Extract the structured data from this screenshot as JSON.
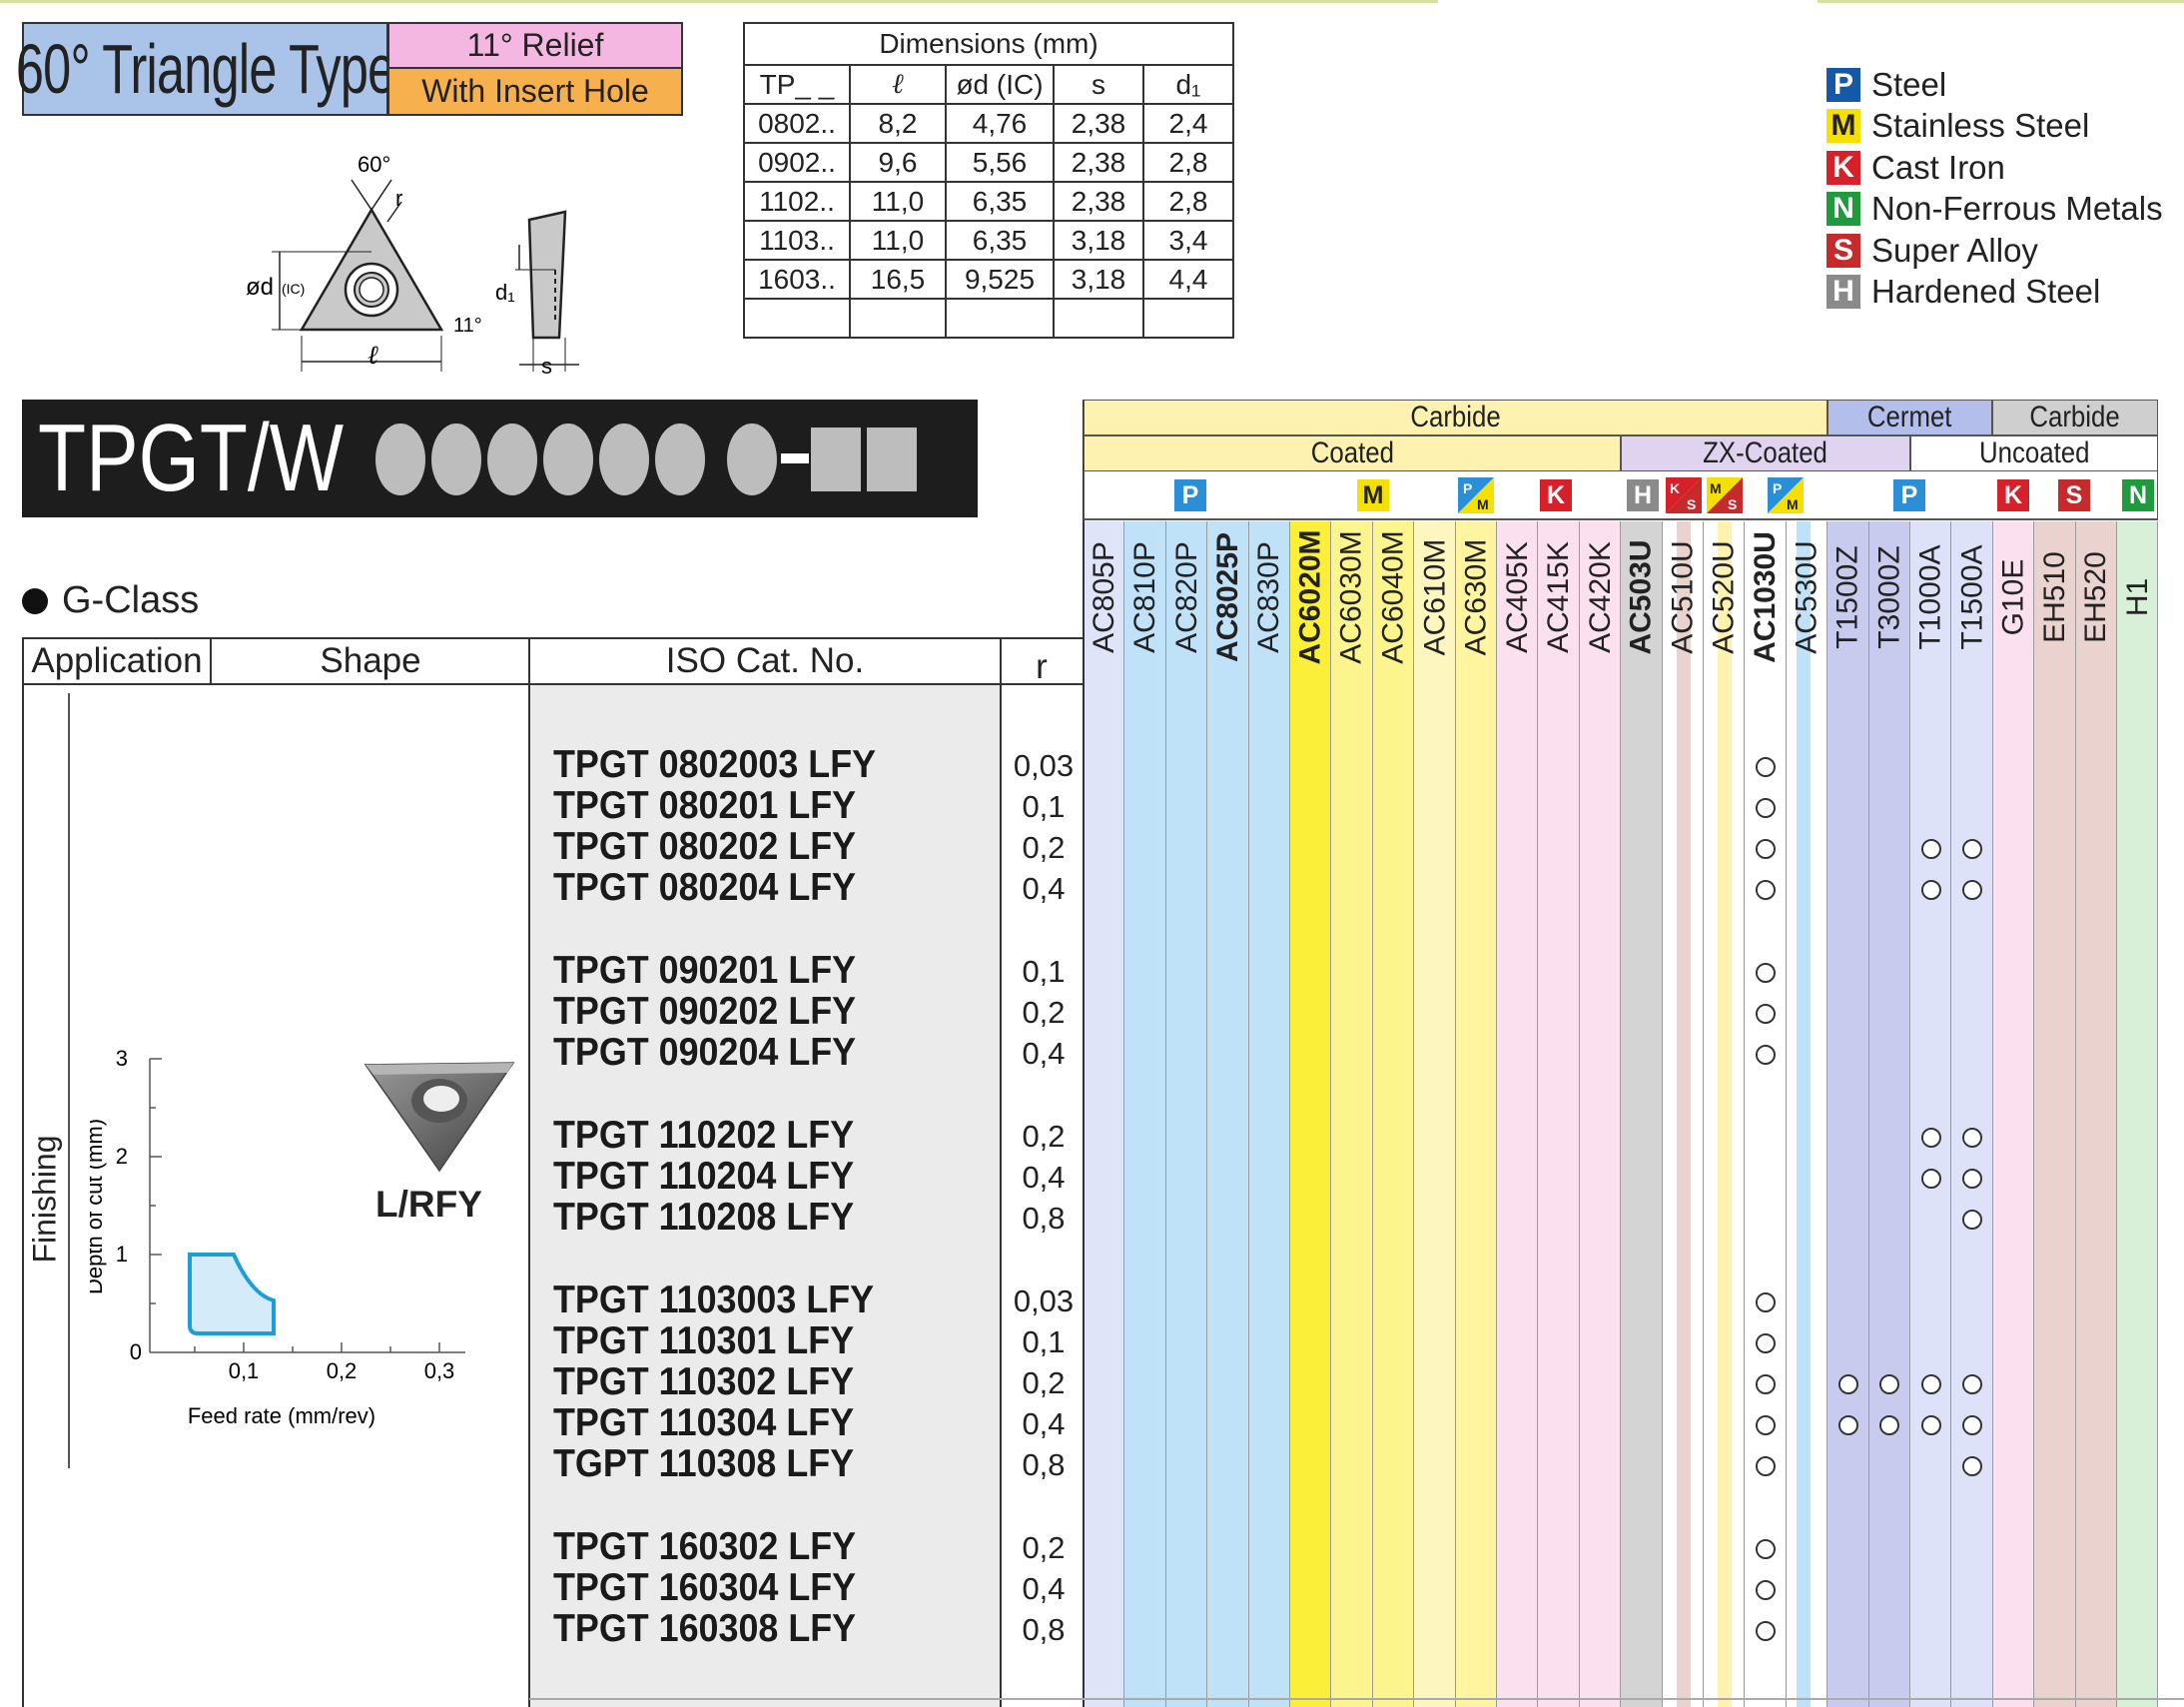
{
  "header": {
    "title": "60° Triangle Type",
    "relief": "11° Relief",
    "insert_hole": "With Insert Hole"
  },
  "diagram_labels": {
    "angle": "60°",
    "r": "r",
    "diameter": "ød",
    "ic": "(IC)",
    "length": "ℓ",
    "relief_angle": "11°",
    "d1": "d₁",
    "s": "s"
  },
  "dimensions": {
    "caption": "Dimensions (mm)",
    "headers": [
      "TP_ _",
      "ℓ",
      "ød (IC)",
      "s",
      "d₁"
    ],
    "rows": [
      [
        "0802..",
        "8,2",
        "4,76",
        "2,38",
        "2,4"
      ],
      [
        "0902..",
        "9,6",
        "5,56",
        "2,38",
        "2,8"
      ],
      [
        "1102..",
        "11,0",
        "6,35",
        "2,38",
        "2,8"
      ],
      [
        "1103..",
        "11,0",
        "6,35",
        "3,18",
        "3,4"
      ],
      [
        "1603..",
        "16,5",
        "9,525",
        "3,18",
        "4,4"
      ],
      [
        "",
        "",
        "",
        "",
        ""
      ]
    ]
  },
  "materials": [
    {
      "code": "P",
      "label": "Steel",
      "color": "#1459a8",
      "text_color": "#ffffff"
    },
    {
      "code": "M",
      "label": "Stainless Steel",
      "color": "#f6e000",
      "text_color": "#222222"
    },
    {
      "code": "K",
      "label": "Cast Iron",
      "color": "#d6202a",
      "text_color": "#ffffff"
    },
    {
      "code": "N",
      "label": "Non-Ferrous Metals",
      "color": "#1f9a3c",
      "text_color": "#ffffff"
    },
    {
      "code": "S",
      "label": "Super Alloy",
      "color": "#c72a2a",
      "text_color": "#ffffff"
    },
    {
      "code": "H",
      "label": "Hardened Steel",
      "color": "#8a8a8a",
      "text_color": "#ffffff"
    }
  ],
  "product": {
    "code": "TPGT/W",
    "class_label": "G-Class"
  },
  "table_headers": {
    "application": "Application",
    "shape": "Shape",
    "iso": "ISO Cat. No.",
    "r": "r"
  },
  "grade_groups": {
    "carbide": "Carbide",
    "coated": "Coated",
    "zx_coated": "ZX-Coated",
    "cermet": "Cermet",
    "carbide2": "Carbide",
    "uncoated": "Uncoated"
  },
  "material_badges": {
    "p": "P",
    "m": "M",
    "k": "K",
    "h": "H",
    "s": "S",
    "n": "N"
  },
  "grades": [
    "AC805P",
    "AC810P",
    "AC820P",
    "AC8025P",
    "AC830P",
    "AC6020M",
    "AC6030M",
    "AC6040M",
    "AC610M",
    "AC630M",
    "AC405K",
    "AC415K",
    "AC420K",
    "AC503U",
    "AC510U",
    "AC520U",
    "AC1030U",
    "AC530U",
    "T1500Z",
    "T3000Z",
    "T1000A",
    "T1500A",
    "G10E",
    "EH510",
    "EH520",
    "H1"
  ],
  "application": "Finishing",
  "shape": {
    "label": "L/RFY",
    "chart": {
      "xlabel": "Feed rate (mm/rev)",
      "ylabel": "Depth of cut (mm)",
      "x_ticks": [
        "0,1",
        "0,2",
        "0,3"
      ],
      "y_ticks": [
        "0",
        "1",
        "2",
        "3"
      ]
    }
  },
  "products": [
    {
      "cat": "TPGT 0802003 LFY",
      "r": "0,03",
      "grades": [
        "AC1030U"
      ]
    },
    {
      "cat": "TPGT 080201 LFY",
      "r": "0,1",
      "grades": [
        "AC1030U"
      ]
    },
    {
      "cat": "TPGT 080202 LFY",
      "r": "0,2",
      "grades": [
        "AC1030U",
        "T1000A",
        "T1500A"
      ]
    },
    {
      "cat": "TPGT 080204 LFY",
      "r": "0,4",
      "grades": [
        "AC1030U",
        "T1000A",
        "T1500A"
      ]
    },
    {
      "cat": "TPGT 090201 LFY",
      "r": "0,1",
      "grades": [
        "AC1030U"
      ]
    },
    {
      "cat": "TPGT 090202 LFY",
      "r": "0,2",
      "grades": [
        "AC1030U"
      ]
    },
    {
      "cat": "TPGT 090204 LFY",
      "r": "0,4",
      "grades": [
        "AC1030U"
      ]
    },
    {
      "cat": "TPGT 110202 LFY",
      "r": "0,2",
      "grades": [
        "T1000A",
        "T1500A"
      ]
    },
    {
      "cat": "TPGT 110204 LFY",
      "r": "0,4",
      "grades": [
        "T1000A",
        "T1500A"
      ]
    },
    {
      "cat": "TPGT 110208 LFY",
      "r": "0,8",
      "grades": [
        "T1500A"
      ]
    },
    {
      "cat": "TPGT 1103003 LFY",
      "r": "0,03",
      "grades": [
        "AC1030U"
      ]
    },
    {
      "cat": "TPGT 110301 LFY",
      "r": "0,1",
      "grades": [
        "AC1030U"
      ]
    },
    {
      "cat": "TPGT 110302 LFY",
      "r": "0,2",
      "grades": [
        "AC1030U",
        "T1500Z",
        "T3000Z",
        "T1000A",
        "T1500A"
      ]
    },
    {
      "cat": "TPGT 110304 LFY",
      "r": "0,4",
      "grades": [
        "AC1030U",
        "T1500Z",
        "T3000Z",
        "T1000A",
        "T1500A"
      ]
    },
    {
      "cat": "TGPT 110308 LFY",
      "r": "0,8",
      "grades": [
        "AC1030U",
        "T1500A"
      ]
    },
    {
      "cat": "TPGT 160302 LFY",
      "r": "0,2",
      "grades": [
        "AC1030U"
      ]
    },
    {
      "cat": "TPGT 160304 LFY",
      "r": "0,4",
      "grades": [
        "AC1030U"
      ]
    },
    {
      "cat": "TPGT 160308 LFY",
      "r": "0,8",
      "grades": [
        "AC1030U"
      ]
    }
  ]
}
